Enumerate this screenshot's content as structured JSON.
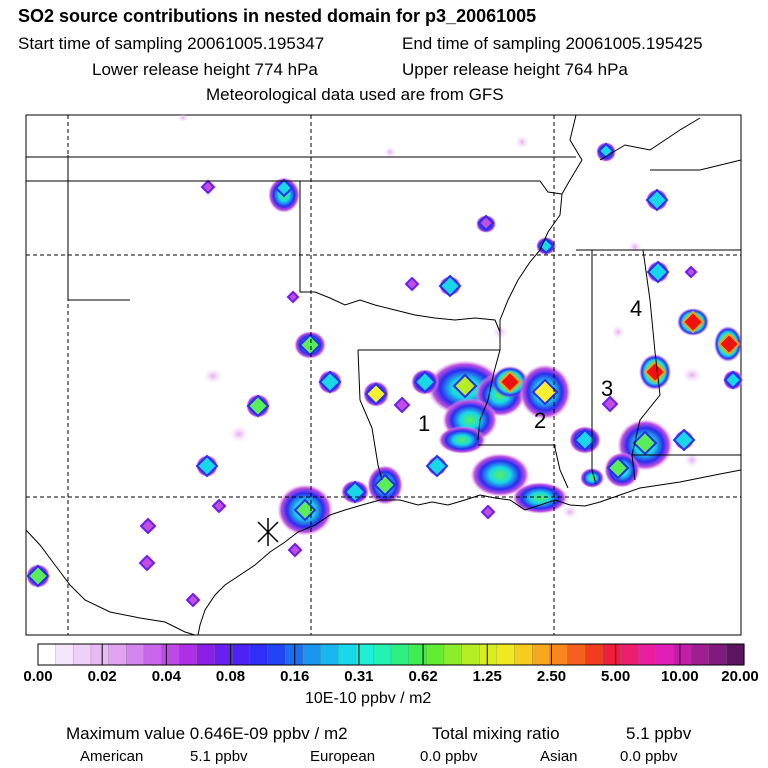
{
  "header": {
    "title": "SO2 source contributions in nested domain for p3_20061005",
    "start_label": "Start time of sampling 20061005.195347",
    "end_label": "End time of sampling 20061005.195425",
    "lower_label": "Lower release height  774 hPa",
    "upper_label": "Upper release height  764 hPa",
    "met_label": "Meteorological data used are from GFS"
  },
  "map": {
    "region_labels": [
      "1",
      "2",
      "3",
      "4"
    ],
    "colors": {
      "border": "#000000",
      "grid": "#000000",
      "plume_low": "#e9c8f2",
      "plume_mid": "#c04fe0",
      "plume_blue": "#2c2cf0",
      "plume_cyan": "#18d8e8",
      "plume_green": "#59ee59",
      "plume_yellow": "#f4f030",
      "plume_orange": "#f7a020",
      "plume_red": "#ee1111"
    }
  },
  "colorbar": {
    "tick_labels": [
      "0.00",
      "0.02",
      "0.04",
      "0.08",
      "0.16",
      "0.31",
      "0.62",
      "1.25",
      "2.50",
      "5.00",
      "10.00",
      "20.00"
    ],
    "colors": [
      "#ffffff",
      "#f6e6fb",
      "#efd0f7",
      "#e8baf4",
      "#e0a2f1",
      "#d585ee",
      "#c966ea",
      "#bd4ae6",
      "#ad2fe6",
      "#8a1fe6",
      "#6a1ff0",
      "#4c22f5",
      "#2f2ff7",
      "#1f45f4",
      "#1a6ef0",
      "#1a96ee",
      "#18b8ee",
      "#18d8ea",
      "#20eed8",
      "#24f2b0",
      "#2cf080",
      "#3cee50",
      "#62ee30",
      "#8cee28",
      "#b4ee24",
      "#d8ee20",
      "#f0e820",
      "#f6cc1e",
      "#f6a81e",
      "#f6881e",
      "#f4601e",
      "#f23c1e",
      "#ee1e3c",
      "#ec1e6c",
      "#ec1ea0",
      "#e01eb8",
      "#c21ea8",
      "#a01e94",
      "#801a80",
      "#5a1460"
    ],
    "units": "10E-10 ppbv / m2"
  },
  "footer": {
    "max_label": "Maximum value  0.646E-09 ppbv / m2",
    "total_label": "Total mixing ratio",
    "total_value": "5.1 ppbv",
    "american_label": "American",
    "american_value": "5.1 ppbv",
    "european_label": "European",
    "european_value": "0.0 ppbv",
    "asian_label": "Asian",
    "asian_value": "0.0 ppbv"
  }
}
